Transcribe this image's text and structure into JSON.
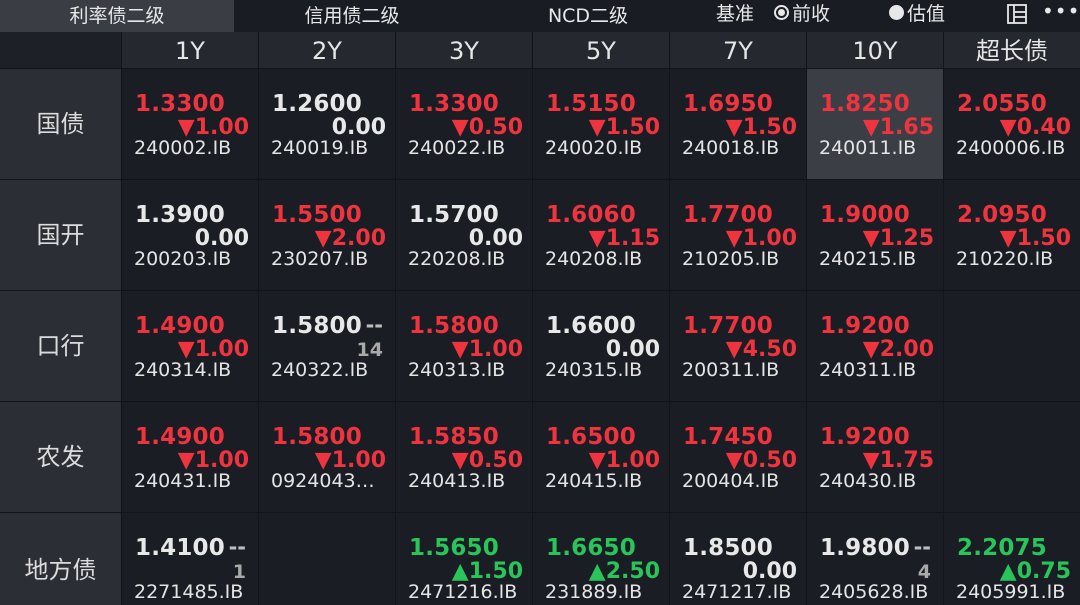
{
  "tabs": [
    "利率债二级",
    "信用债二级",
    "NCD二级"
  ],
  "active_tab": 0,
  "basis": {
    "label": "基准",
    "options": [
      "前收",
      "估值"
    ],
    "selected": 0
  },
  "toolbar": {
    "layout_icon": "layout-icon",
    "more_icon": "more-icon",
    "more_glyph": "•••"
  },
  "tenors": [
    "1Y",
    "2Y",
    "3Y",
    "5Y",
    "7Y",
    "10Y",
    "超长债"
  ],
  "rows": [
    {
      "label": "国债",
      "cells": [
        {
          "price": "1.3300",
          "change": "▼1.00",
          "code": "240002.IB",
          "color": "red"
        },
        {
          "price": "1.2600",
          "change": "0.00",
          "code": "240019.IB",
          "color": "white"
        },
        {
          "price": "1.3300",
          "change": "▼0.50",
          "code": "240022.IB",
          "color": "red"
        },
        {
          "price": "1.5150",
          "change": "▼1.50",
          "code": "240020.IB",
          "color": "red"
        },
        {
          "price": "1.6950",
          "change": "▼1.50",
          "code": "240018.IB",
          "color": "red"
        },
        {
          "price": "1.8250",
          "change": "▼1.65",
          "code": "240011.IB",
          "color": "red",
          "highlight": true
        },
        {
          "price": "2.0550",
          "change": "▼0.40",
          "code": "2400006.IB",
          "color": "red"
        }
      ]
    },
    {
      "label": "国开",
      "cells": [
        {
          "price": "1.3900",
          "change": "0.00",
          "code": "200203.IB",
          "color": "white"
        },
        {
          "price": "1.5500",
          "change": "▼2.00",
          "code": "230207.IB",
          "color": "red"
        },
        {
          "price": "1.5700",
          "change": "0.00",
          "code": "220208.IB",
          "color": "white"
        },
        {
          "price": "1.6060",
          "change": "▼1.15",
          "code": "240208.IB",
          "color": "red"
        },
        {
          "price": "1.7700",
          "change": "▼1.00",
          "code": "210205.IB",
          "color": "red"
        },
        {
          "price": "1.9000",
          "change": "▼1.25",
          "code": "240215.IB",
          "color": "red"
        },
        {
          "price": "2.0950",
          "change": "▼1.50",
          "code": "210220.IB",
          "color": "red"
        }
      ]
    },
    {
      "label": "口行",
      "cells": [
        {
          "price": "1.4900",
          "change": "▼1.00",
          "code": "240314.IB",
          "color": "red"
        },
        {
          "price": "1.5800",
          "dash": "--",
          "count": "14",
          "code": "240322.IB",
          "color": "white"
        },
        {
          "price": "1.5800",
          "change": "▼1.00",
          "code": "240313.IB",
          "color": "red"
        },
        {
          "price": "1.6600",
          "change": "0.00",
          "code": "240315.IB",
          "color": "white"
        },
        {
          "price": "1.7700",
          "change": "▼4.50",
          "code": "200311.IB",
          "color": "red"
        },
        {
          "price": "1.9200",
          "change": "▼2.00",
          "code": "240311.IB",
          "color": "red"
        },
        null
      ]
    },
    {
      "label": "农发",
      "cells": [
        {
          "price": "1.4900",
          "change": "▼1.00",
          "code": "240431.IB",
          "color": "red"
        },
        {
          "price": "1.5800",
          "change": "▼1.00",
          "code": "0924043…",
          "color": "red"
        },
        {
          "price": "1.5850",
          "change": "▼0.50",
          "code": "240413.IB",
          "color": "red"
        },
        {
          "price": "1.6500",
          "change": "▼1.00",
          "code": "240415.IB",
          "color": "red"
        },
        {
          "price": "1.7450",
          "change": "▼0.50",
          "code": "200404.IB",
          "color": "red"
        },
        {
          "price": "1.9200",
          "change": "▼1.75",
          "code": "240430.IB",
          "color": "red"
        },
        null
      ]
    },
    {
      "label": "地方债",
      "cells": [
        {
          "price": "1.4100",
          "dash": "--",
          "count": "1",
          "code": "2271485.IB",
          "color": "white"
        },
        null,
        {
          "price": "1.5650",
          "change": "▲1.50",
          "code": "2471216.IB",
          "color": "green"
        },
        {
          "price": "1.6650",
          "change": "▲2.50",
          "code": "231889.IB",
          "color": "green"
        },
        {
          "price": "1.8500",
          "change": "0.00",
          "code": "2471217.IB",
          "color": "white"
        },
        {
          "price": "1.9800",
          "dash": "--",
          "count": "4",
          "code": "2405628.IB",
          "color": "white"
        },
        {
          "price": "2.2075",
          "change": "▲0.75",
          "code": "2405991.IB",
          "color": "green"
        }
      ]
    }
  ]
}
